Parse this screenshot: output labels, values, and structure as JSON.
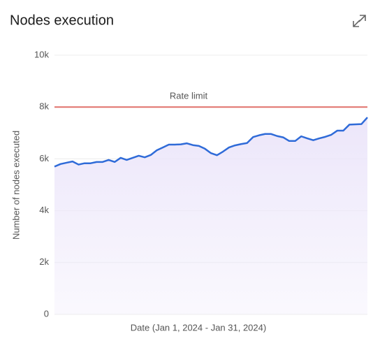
{
  "chart_data": {
    "type": "line",
    "title": "Nodes execution",
    "x_label": "Date (Jan 1, 2024 - Jan 31, 2024)",
    "y_label": "Number of nodes executed",
    "categories": [
      null,
      null,
      null,
      null,
      null,
      null,
      null,
      null,
      null,
      null,
      null,
      null,
      null,
      null,
      null,
      null,
      null,
      null,
      null,
      null,
      null,
      null,
      null,
      null,
      null,
      null,
      null,
      null,
      null,
      null,
      null,
      null,
      null,
      null,
      null,
      null,
      null,
      null,
      null,
      null,
      null,
      null,
      null,
      null,
      null,
      null,
      null,
      null,
      null,
      null,
      null,
      null,
      null
    ],
    "values": [
      5700,
      5800,
      5850,
      5900,
      5780,
      5830,
      5830,
      5880,
      5880,
      5960,
      5880,
      6040,
      5960,
      6040,
      6120,
      6060,
      6150,
      6330,
      6440,
      6550,
      6550,
      6560,
      6600,
      6530,
      6500,
      6390,
      6220,
      6140,
      6280,
      6440,
      6520,
      6570,
      6610,
      6840,
      6910,
      6960,
      6960,
      6880,
      6830,
      6690,
      6690,
      6870,
      6790,
      6720,
      6790,
      6850,
      6930,
      7090,
      7090,
      7320,
      7330,
      7340,
      7600
    ],
    "color": "#2f6bd8",
    "area_color": "#ece6fa",
    "ylim": [
      0,
      10000
    ],
    "yticks": [
      0,
      {
        "value": 2000,
        "label": "2k"
      },
      {
        "value": 4000,
        "label": "4k"
      },
      {
        "value": 6000,
        "label": "6k"
      },
      {
        "value": 8000,
        "label": "8k"
      },
      {
        "value": 10000,
        "label": "10k"
      }
    ],
    "grid": true,
    "reference_line": {
      "label": "Rate limit",
      "value": 8000,
      "color": "#e0706b"
    }
  }
}
